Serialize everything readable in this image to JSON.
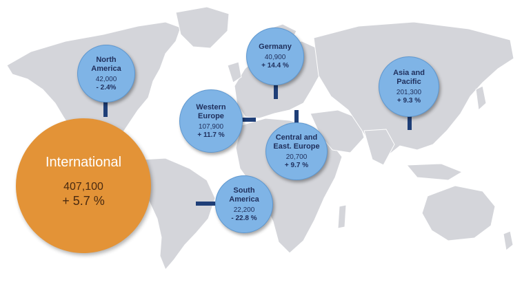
{
  "colors": {
    "land": "#d4d5da",
    "bubble": "#7fb4e6",
    "international": "#e39337",
    "connector": "#1f3f78"
  },
  "international": {
    "label": "International",
    "value": "407,100",
    "change": "+ 5.7 %"
  },
  "regions": [
    {
      "id": "north-america",
      "name_line1": "North",
      "name_line2": "America",
      "value": "42,000",
      "change": "- 2.4%"
    },
    {
      "id": "germany",
      "name_line1": "Germany",
      "name_line2": "",
      "value": "40,900",
      "change": "+ 14.4 %"
    },
    {
      "id": "asia-pacific",
      "name_line1": "Asia and",
      "name_line2": "Pacific",
      "value": "201,300",
      "change": "+ 9.3 %"
    },
    {
      "id": "western-europe",
      "name_line1": "Western",
      "name_line2": "Europe",
      "value": "107,900",
      "change": "+ 11.7 %"
    },
    {
      "id": "central-east-europe",
      "name_line1": "Central and",
      "name_line2": "East. Europe",
      "value": "20,700",
      "change": "+ 9.7 %"
    },
    {
      "id": "south-america",
      "name_line1": "South",
      "name_line2": "America",
      "value": "22,200",
      "change": "- 22.8 %"
    }
  ]
}
